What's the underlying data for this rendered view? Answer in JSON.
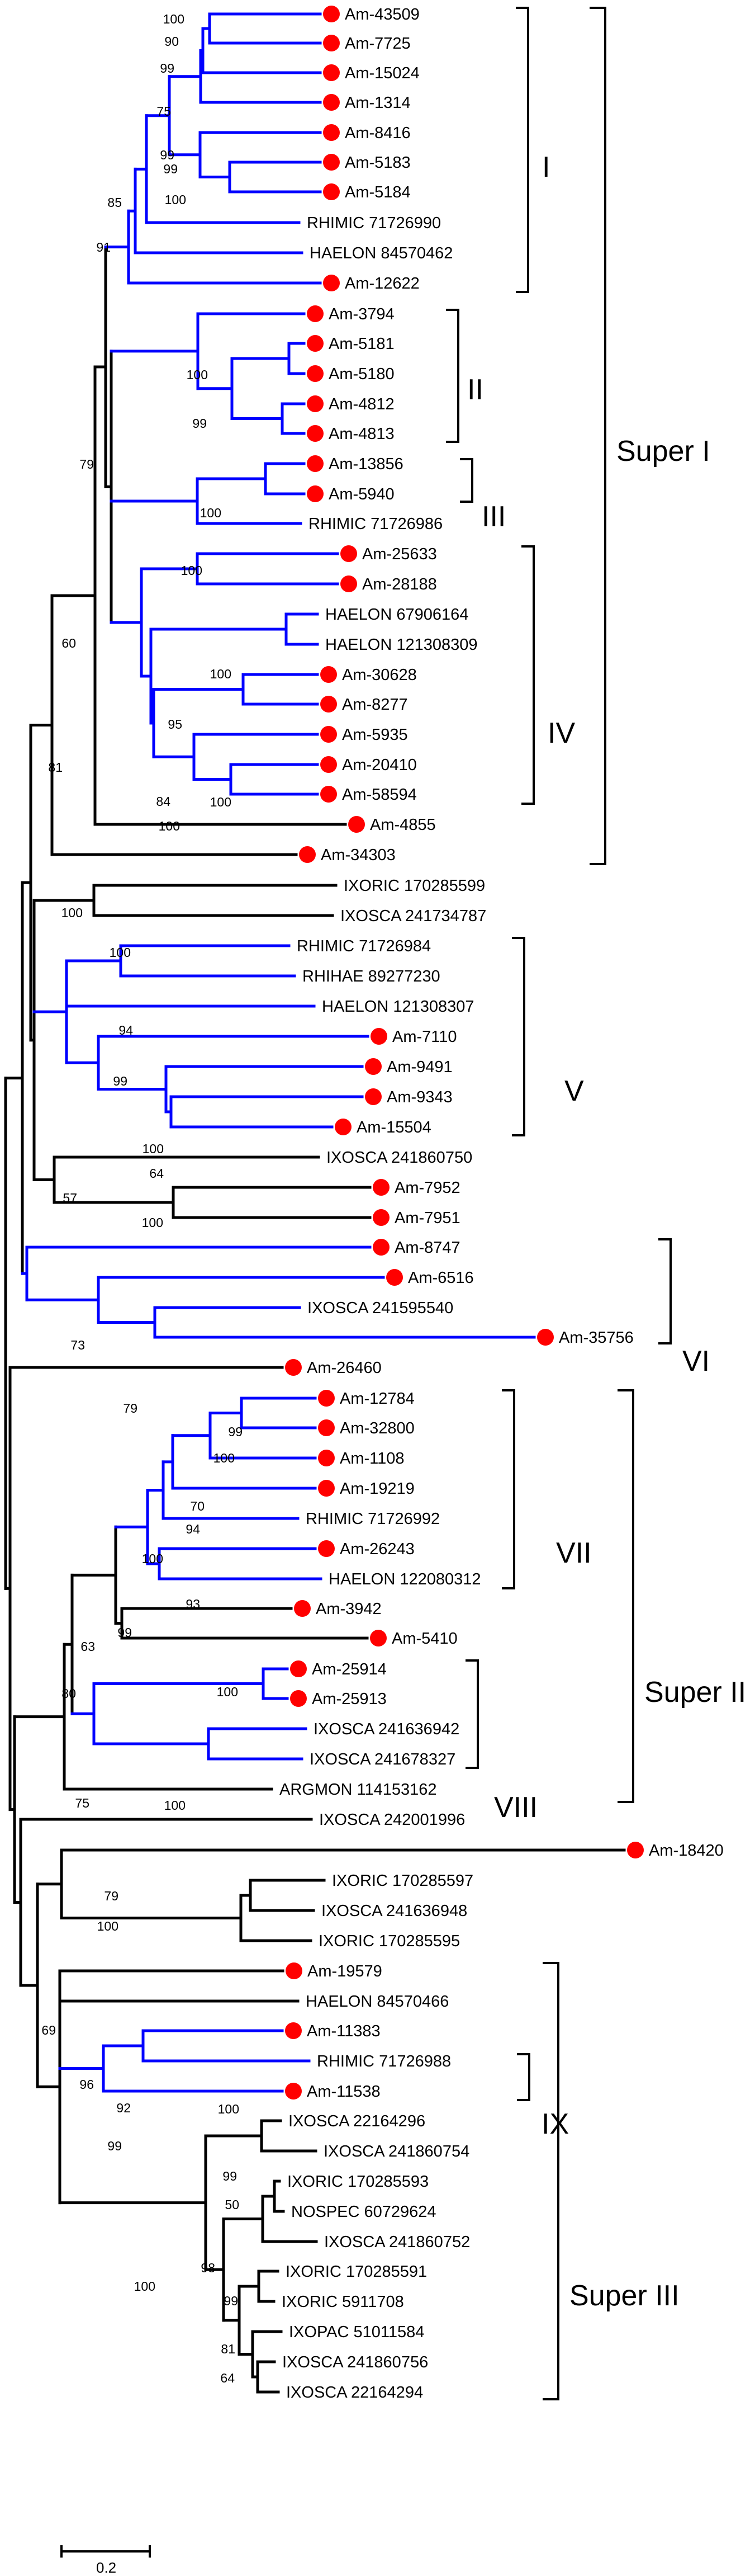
{
  "colors": {
    "tree": "#000000",
    "highlight": "#0000ff",
    "marker": "#ff0000",
    "bracket": "#000000"
  },
  "leaves": [
    {
      "label": "Am-43509",
      "dot": true
    },
    {
      "label": "Am-7725",
      "dot": true
    },
    {
      "label": "Am-15024",
      "dot": true
    },
    {
      "label": "Am-1314",
      "dot": true
    },
    {
      "label": "Am-8416",
      "dot": true
    },
    {
      "label": "Am-5183",
      "dot": true
    },
    {
      "label": "Am-5184",
      "dot": true
    },
    {
      "label": "RHIMIC 71726990",
      "dot": false
    },
    {
      "label": "HAELON 84570462",
      "dot": false
    },
    {
      "label": "Am-12622",
      "dot": true
    },
    {
      "label": "Am-3794",
      "dot": true
    },
    {
      "label": "Am-5181",
      "dot": true
    },
    {
      "label": "Am-5180",
      "dot": true
    },
    {
      "label": "Am-4812",
      "dot": true
    },
    {
      "label": "Am-4813",
      "dot": true
    },
    {
      "label": "Am-13856",
      "dot": true
    },
    {
      "label": "Am-5940",
      "dot": true
    },
    {
      "label": "RHIMIC 71726986",
      "dot": false
    },
    {
      "label": "Am-25633",
      "dot": true
    },
    {
      "label": "Am-28188",
      "dot": true
    },
    {
      "label": "HAELON 67906164",
      "dot": false
    },
    {
      "label": "HAELON 121308309",
      "dot": false
    },
    {
      "label": "Am-30628",
      "dot": true
    },
    {
      "label": "Am-8277",
      "dot": true
    },
    {
      "label": "Am-5935",
      "dot": true
    },
    {
      "label": "Am-20410",
      "dot": true
    },
    {
      "label": "Am-58594",
      "dot": true
    },
    {
      "label": "Am-4855",
      "dot": true
    },
    {
      "label": "Am-34303",
      "dot": true
    },
    {
      "label": "IXORIC 170285599",
      "dot": false
    },
    {
      "label": "IXOSCA 241734787",
      "dot": false
    },
    {
      "label": "RHIMIC 71726984",
      "dot": false
    },
    {
      "label": "RHIHAE 89277230",
      "dot": false
    },
    {
      "label": "HAELON 121308307",
      "dot": false
    },
    {
      "label": "Am-7110",
      "dot": true
    },
    {
      "label": "Am-9491",
      "dot": true
    },
    {
      "label": "Am-9343",
      "dot": true
    },
    {
      "label": "Am-15504",
      "dot": true
    },
    {
      "label": "IXOSCA 241860750",
      "dot": false
    },
    {
      "label": "Am-7952",
      "dot": true
    },
    {
      "label": "Am-7951",
      "dot": true
    },
    {
      "label": "Am-8747",
      "dot": true
    },
    {
      "label": "Am-6516",
      "dot": true
    },
    {
      "label": "IXOSCA 241595540",
      "dot": false
    },
    {
      "label": "Am-35756",
      "dot": true
    },
    {
      "label": "Am-26460",
      "dot": true
    },
    {
      "label": "Am-12784",
      "dot": true
    },
    {
      "label": "Am-32800",
      "dot": true
    },
    {
      "label": "Am-1108",
      "dot": true
    },
    {
      "label": "Am-19219",
      "dot": true
    },
    {
      "label": "RHIMIC 71726992",
      "dot": false
    },
    {
      "label": "Am-26243",
      "dot": true
    },
    {
      "label": "HAELON 122080312",
      "dot": false
    },
    {
      "label": "Am-3942",
      "dot": true
    },
    {
      "label": "Am-5410",
      "dot": true
    },
    {
      "label": "Am-25914",
      "dot": true
    },
    {
      "label": "Am-25913",
      "dot": true
    },
    {
      "label": "IXOSCA 241636942",
      "dot": false
    },
    {
      "label": "IXOSCA 241678327",
      "dot": false
    },
    {
      "label": "ARGMON 114153162",
      "dot": false
    },
    {
      "label": "IXOSCA 242001996",
      "dot": false
    },
    {
      "label": "Am-18420",
      "dot": true
    },
    {
      "label": "IXORIC 170285597",
      "dot": false
    },
    {
      "label": "IXOSCA 241636948",
      "dot": false
    },
    {
      "label": "IXORIC 170285595",
      "dot": false
    },
    {
      "label": "Am-19579",
      "dot": true
    },
    {
      "label": "HAELON 84570466",
      "dot": false
    },
    {
      "label": "Am-11383",
      "dot": true
    },
    {
      "label": "RHIMIC 71726988",
      "dot": false
    },
    {
      "label": "Am-11538",
      "dot": true
    },
    {
      "label": "IXOSCA 22164296",
      "dot": false
    },
    {
      "label": "IXOSCA 241860754",
      "dot": false
    },
    {
      "label": "IXORIC 170285593",
      "dot": false
    },
    {
      "label": "NOSPEC 60729624",
      "dot": false
    },
    {
      "label": "IXOSCA 241860752",
      "dot": false
    },
    {
      "label": "IXORIC 170285591",
      "dot": false
    },
    {
      "label": "IXORIC 5911708",
      "dot": false
    },
    {
      "label": "IXOPAC 51011584",
      "dot": false
    },
    {
      "label": "IXOSCA 241860756",
      "dot": false
    },
    {
      "label": "IXOSCA 22164294",
      "dot": false
    }
  ],
  "bootstrap_values": [
    "100",
    "90",
    "99",
    "75",
    "99",
    "99",
    "100",
    "85",
    "91",
    "100",
    "99",
    "100",
    "100",
    "100",
    "95",
    "84",
    "100",
    "100",
    "79",
    "60",
    "81",
    "100",
    "100",
    "94",
    "99",
    "100",
    "64",
    "57",
    "100",
    "73",
    "79",
    "99",
    "100",
    "70",
    "94",
    "100",
    "93",
    "63",
    "99",
    "80",
    "100",
    "75",
    "100",
    "79",
    "100",
    "69",
    "96",
    "92",
    "99",
    "100",
    "99",
    "50",
    "100",
    "98",
    "99",
    "81",
    "64"
  ],
  "clade_labels": [
    "I",
    "II",
    "III",
    "IV",
    "V",
    "VI",
    "VII",
    "VIII",
    "IX"
  ],
  "super_labels": [
    "Super  I",
    "Super  II",
    "Super  III"
  ],
  "scale_label": "0.2"
}
